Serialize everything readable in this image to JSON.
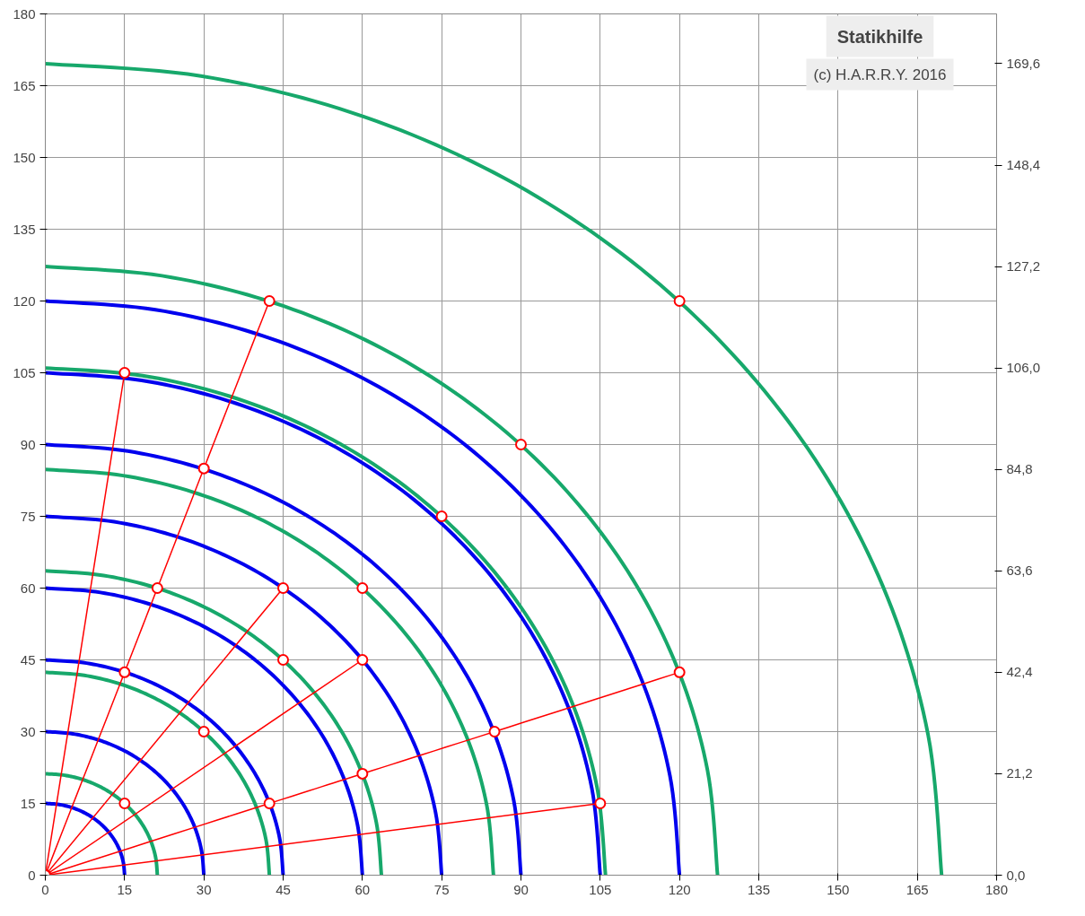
{
  "chart_data": {
    "type": "line",
    "title": "Statikhilfe",
    "subtitle": "(c) H.A.R.R.Y. 2016",
    "xlim": [
      0,
      180
    ],
    "ylim": [
      0,
      180
    ],
    "xticks": [
      0,
      15,
      30,
      45,
      60,
      75,
      90,
      105,
      120,
      135,
      150,
      165,
      180
    ],
    "yticks": [
      0,
      15,
      30,
      45,
      60,
      75,
      90,
      105,
      120,
      135,
      150,
      165,
      180
    ],
    "y2lim": [
      0,
      180
    ],
    "y2ticks": [
      {
        "value": 0,
        "label": "0,0"
      },
      {
        "value": 21.2,
        "label": "21,2"
      },
      {
        "value": 42.4,
        "label": "42,4"
      },
      {
        "value": 63.6,
        "label": "63,6"
      },
      {
        "value": 84.8,
        "label": "84,8"
      },
      {
        "value": 106.0,
        "label": "106,0"
      },
      {
        "value": 127.2,
        "label": "127,2"
      },
      {
        "value": 148.4,
        "label": "148,4"
      },
      {
        "value": 169.6,
        "label": "169,6"
      }
    ],
    "grid": true,
    "marker": "none",
    "line_style": "solid",
    "series": [
      {
        "color": "#0000ee",
        "x": [
          15,
          14.77,
          14.1,
          12.99,
          11.49,
          9.64,
          7.5,
          5.13,
          2.6,
          0
        ],
        "values": [
          0,
          2.6,
          5.13,
          7.5,
          9.64,
          11.49,
          12.99,
          14.1,
          14.77,
          15
        ]
      },
      {
        "color": "#0000ee",
        "x": [
          30,
          29.54,
          28.19,
          25.98,
          22.98,
          19.28,
          15,
          10.26,
          5.21,
          0
        ],
        "values": [
          0,
          5.21,
          10.26,
          15,
          19.28,
          22.98,
          25.98,
          28.19,
          29.54,
          30
        ]
      },
      {
        "color": "#0000ee",
        "x": [
          45,
          44.32,
          42.29,
          38.97,
          34.47,
          28.93,
          22.5,
          15.39,
          7.81,
          0
        ],
        "values": [
          0,
          7.81,
          15.39,
          22.5,
          28.93,
          34.47,
          38.97,
          42.29,
          44.32,
          45
        ]
      },
      {
        "color": "#0000ee",
        "x": [
          60,
          59.09,
          56.38,
          51.96,
          45.96,
          38.57,
          30,
          20.52,
          10.42,
          0
        ],
        "values": [
          0,
          10.42,
          20.52,
          30,
          38.57,
          45.96,
          51.96,
          56.38,
          59.09,
          60
        ]
      },
      {
        "color": "#0000ee",
        "x": [
          75,
          73.86,
          70.48,
          64.95,
          57.45,
          48.21,
          37.5,
          25.65,
          13.02,
          0
        ],
        "values": [
          0,
          13.02,
          25.65,
          37.5,
          48.21,
          57.45,
          64.95,
          70.48,
          73.86,
          75
        ]
      },
      {
        "color": "#0000ee",
        "x": [
          90,
          88.63,
          84.57,
          77.94,
          68.94,
          57.85,
          45,
          30.78,
          15.62,
          0
        ],
        "values": [
          0,
          15.62,
          30.78,
          45,
          57.85,
          68.94,
          77.94,
          84.57,
          88.63,
          90
        ]
      },
      {
        "color": "#0000ee",
        "x": [
          105,
          103.4,
          98.67,
          90.93,
          80.43,
          67.49,
          52.5,
          35.91,
          18.23,
          0
        ],
        "values": [
          0,
          18.23,
          35.91,
          52.5,
          67.49,
          80.43,
          90.93,
          98.67,
          103.4,
          105
        ]
      },
      {
        "color": "#0000ee",
        "x": [
          120,
          118.18,
          112.76,
          103.92,
          91.92,
          77.14,
          60,
          41.04,
          20.83,
          0
        ],
        "values": [
          0,
          20.83,
          41.04,
          60,
          77.14,
          91.92,
          103.92,
          112.76,
          118.18,
          120
        ]
      },
      {
        "color": "#17a86b",
        "x": [
          21.2,
          20.88,
          19.92,
          18.36,
          16.24,
          13.63,
          10.6,
          7.25,
          3.68,
          0
        ],
        "values": [
          0,
          3.68,
          7.25,
          10.6,
          13.63,
          16.24,
          18.36,
          19.92,
          20.88,
          21.2
        ]
      },
      {
        "color": "#17a86b",
        "x": [
          42.4,
          41.76,
          39.84,
          36.72,
          32.48,
          27.25,
          21.2,
          14.5,
          7.36,
          0
        ],
        "values": [
          0,
          7.36,
          14.5,
          21.2,
          27.25,
          32.48,
          36.72,
          39.84,
          41.76,
          42.4
        ]
      },
      {
        "color": "#17a86b",
        "x": [
          63.6,
          62.63,
          59.77,
          55.08,
          48.72,
          40.88,
          31.8,
          21.75,
          11.04,
          0
        ],
        "values": [
          0,
          11.04,
          21.75,
          31.8,
          40.88,
          48.72,
          55.08,
          59.77,
          62.63,
          63.6
        ]
      },
      {
        "color": "#17a86b",
        "x": [
          84.8,
          83.51,
          79.69,
          73.44,
          64.96,
          54.51,
          42.4,
          29.0,
          14.72,
          0
        ],
        "values": [
          0,
          14.72,
          29.0,
          42.4,
          54.51,
          64.96,
          73.44,
          79.69,
          83.51,
          84.8
        ]
      },
      {
        "color": "#17a86b",
        "x": [
          106,
          104.39,
          99.61,
          91.8,
          81.2,
          68.14,
          53,
          36.25,
          18.4,
          0
        ],
        "values": [
          0,
          18.4,
          36.25,
          53,
          68.14,
          81.2,
          91.8,
          99.61,
          104.39,
          106
        ]
      },
      {
        "color": "#17a86b",
        "x": [
          127.2,
          125.27,
          119.53,
          110.16,
          97.44,
          81.76,
          63.6,
          43.5,
          22.08,
          0
        ],
        "values": [
          0,
          22.08,
          43.5,
          63.6,
          81.76,
          97.44,
          110.16,
          119.53,
          125.27,
          127.2
        ]
      },
      {
        "color": "#17a86b",
        "x": [
          169.6,
          167.02,
          159.37,
          146.88,
          129.91,
          109.02,
          84.8,
          58.0,
          29.44,
          0
        ],
        "values": [
          0,
          29.44,
          58.0,
          84.8,
          109.02,
          129.91,
          146.88,
          159.37,
          167.02,
          169.6
        ]
      },
      {
        "color": "#ff0000",
        "marker": "circle",
        "x": [
          0,
          15
        ],
        "values": [
          0,
          105
        ]
      },
      {
        "color": "#ff0000",
        "marker": "circle",
        "x": [
          0,
          15,
          21.2,
          30,
          42.4
        ],
        "values": [
          0,
          42.4,
          60,
          85,
          120
        ]
      },
      {
        "color": "#ff0000",
        "marker": "circle",
        "x": [
          0,
          45
        ],
        "values": [
          0,
          60
        ]
      },
      {
        "color": "#ff0000",
        "marker": "circle",
        "x": [
          0,
          60
        ],
        "values": [
          0,
          45
        ]
      },
      {
        "color": "#ff0000",
        "marker": "circle",
        "x": [
          0,
          42.4,
          60,
          85,
          120
        ],
        "values": [
          0,
          15,
          21.2,
          30,
          42.4
        ]
      },
      {
        "color": "#ff0000",
        "marker": "circle",
        "x": [
          0,
          105
        ],
        "values": [
          0,
          15
        ]
      },
      {
        "type": "scatter",
        "color": "#ff0000",
        "marker": "circle",
        "x": [
          15,
          30,
          45,
          60,
          75,
          90,
          120
        ],
        "values": [
          15,
          30,
          45,
          60,
          75,
          90,
          120
        ]
      }
    ]
  }
}
